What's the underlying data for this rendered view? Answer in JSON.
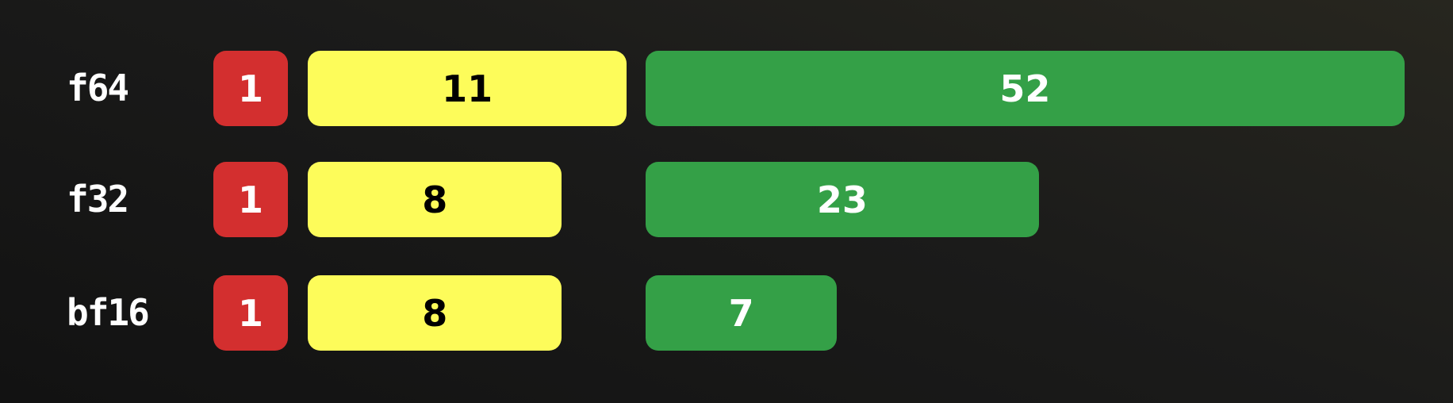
{
  "chart_data": {
    "type": "bar",
    "stacked_layout": "segmented-horizontal",
    "categories": [
      "f64",
      "f32",
      "bf16"
    ],
    "series": [
      {
        "values": [
          1,
          1,
          1
        ],
        "color": "#d32f2f",
        "text_color": "#ffffff"
      },
      {
        "values": [
          11,
          8,
          8
        ],
        "color": "#fdfc5a",
        "text_color": "#000000"
      },
      {
        "values": [
          52,
          23,
          7
        ],
        "color": "#34a047",
        "text_color": "#ffffff"
      }
    ],
    "grid": false,
    "legend": "none"
  }
}
